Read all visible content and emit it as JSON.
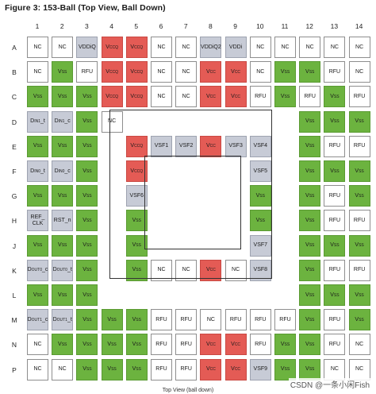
{
  "title": "Figure 3: 153-Ball (Top View, Ball Down)",
  "footer": "Top View (ball down)",
  "watermark": "CSDN @一条小闲Fish",
  "colors": {
    "green": "#6cb33f",
    "red": "#e45b55",
    "gray": "#c7cbd6",
    "white": "#ffffff"
  },
  "columns": [
    "1",
    "2",
    "3",
    "4",
    "5",
    "6",
    "7",
    "8",
    "9",
    "10",
    "11",
    "12",
    "13",
    "14"
  ],
  "rows": [
    {
      "label": "A",
      "cells": [
        [
          "NC",
          "w"
        ],
        [
          "NC",
          "w"
        ],
        [
          "VDDiQ",
          "g"
        ],
        [
          "VCCQ",
          "r"
        ],
        [
          "VCCQ",
          "r"
        ],
        [
          "NC",
          "w"
        ],
        [
          "NC",
          "w"
        ],
        [
          "VDDiQ2",
          "g"
        ],
        [
          "VDDi",
          "g"
        ],
        [
          "NC",
          "w"
        ],
        [
          "NC",
          "w"
        ],
        [
          "NC",
          "w"
        ],
        [
          "NC",
          "w"
        ],
        [
          "NC",
          "w"
        ]
      ]
    },
    {
      "label": "B",
      "cells": [
        [
          "NC",
          "w"
        ],
        [
          "VSS",
          "G"
        ],
        [
          "RFU",
          "w"
        ],
        [
          "VCCQ",
          "r"
        ],
        [
          "VCCQ",
          "r"
        ],
        [
          "NC",
          "w"
        ],
        [
          "NC",
          "w"
        ],
        [
          "VCC",
          "r"
        ],
        [
          "VCC",
          "r"
        ],
        [
          "NC",
          "w"
        ],
        [
          "VSS",
          "G"
        ],
        [
          "VSS",
          "G"
        ],
        [
          "RFU",
          "w"
        ],
        [
          "NC",
          "w"
        ]
      ]
    },
    {
      "label": "C",
      "cells": [
        [
          "VSS",
          "G"
        ],
        [
          "VSS",
          "G"
        ],
        [
          "VSS",
          "G"
        ],
        [
          "VCCQ",
          "r"
        ],
        [
          "VCCQ",
          "r"
        ],
        [
          "NC",
          "w"
        ],
        [
          "NC",
          "w"
        ],
        [
          "VCC",
          "r"
        ],
        [
          "VCC",
          "r"
        ],
        [
          "RFU",
          "w"
        ],
        [
          "VSS",
          "G"
        ],
        [
          "RFU",
          "w"
        ],
        [
          "VSS",
          "G"
        ],
        [
          "RFU",
          "w"
        ]
      ]
    },
    {
      "label": "D",
      "cells": [
        [
          "DIN1_t",
          "g"
        ],
        [
          "DIN1_c",
          "g"
        ],
        [
          "VSS",
          "G"
        ],
        [
          "NC",
          "w"
        ],
        [
          "",
          "e"
        ],
        [
          "",
          "e"
        ],
        [
          "",
          "e"
        ],
        [
          "",
          "e"
        ],
        [
          "",
          "e"
        ],
        [
          "",
          "e"
        ],
        [
          "",
          "e"
        ],
        [
          "VSS",
          "G"
        ],
        [
          "VSS",
          "G"
        ],
        [
          "VSS",
          "G"
        ]
      ]
    },
    {
      "label": "E",
      "cells": [
        [
          "VSS",
          "G"
        ],
        [
          "VSS",
          "G"
        ],
        [
          "VSS",
          "G"
        ],
        [
          "",
          "e"
        ],
        [
          "VCCQ",
          "r"
        ],
        [
          "VSF1",
          "g"
        ],
        [
          "VSF2",
          "g"
        ],
        [
          "VCC",
          "r"
        ],
        [
          "VSF3",
          "g"
        ],
        [
          "VSF4",
          "g"
        ],
        [
          "",
          "e"
        ],
        [
          "VSS",
          "G"
        ],
        [
          "RFU",
          "w"
        ],
        [
          "RFU",
          "w"
        ]
      ]
    },
    {
      "label": "F",
      "cells": [
        [
          "DIN0_t",
          "g"
        ],
        [
          "DIN0_c",
          "g"
        ],
        [
          "VSS",
          "G"
        ],
        [
          "",
          "e"
        ],
        [
          "VCCQ",
          "r"
        ],
        [
          "",
          "e"
        ],
        [
          "",
          "e"
        ],
        [
          "",
          "e"
        ],
        [
          "",
          "e"
        ],
        [
          "VSF5",
          "g"
        ],
        [
          "",
          "e"
        ],
        [
          "VSS",
          "G"
        ],
        [
          "VSS",
          "G"
        ],
        [
          "VSS",
          "G"
        ]
      ]
    },
    {
      "label": "G",
      "cells": [
        [
          "VSS",
          "G"
        ],
        [
          "VSS",
          "G"
        ],
        [
          "VSS",
          "G"
        ],
        [
          "",
          "e"
        ],
        [
          "VSF6",
          "g"
        ],
        [
          "",
          "e"
        ],
        [
          "",
          "e"
        ],
        [
          "",
          "e"
        ],
        [
          "",
          "e"
        ],
        [
          "VSS",
          "G"
        ],
        [
          "",
          "e"
        ],
        [
          "VSS",
          "G"
        ],
        [
          "RFU",
          "w"
        ],
        [
          "VSS",
          "G"
        ]
      ]
    },
    {
      "label": "H",
      "cells": [
        [
          "REF_CLK",
          "g"
        ],
        [
          "RST_n",
          "g"
        ],
        [
          "VSS",
          "G"
        ],
        [
          "",
          "e"
        ],
        [
          "VSS",
          "G"
        ],
        [
          "",
          "e"
        ],
        [
          "",
          "e"
        ],
        [
          "",
          "e"
        ],
        [
          "",
          "e"
        ],
        [
          "VSS",
          "G"
        ],
        [
          "",
          "e"
        ],
        [
          "VSS",
          "G"
        ],
        [
          "RFU",
          "w"
        ],
        [
          "RFU",
          "w"
        ]
      ]
    },
    {
      "label": "J",
      "cells": [
        [
          "VSS",
          "G"
        ],
        [
          "VSS",
          "G"
        ],
        [
          "VSS",
          "G"
        ],
        [
          "",
          "e"
        ],
        [
          "VSS",
          "G"
        ],
        [
          "",
          "e"
        ],
        [
          "",
          "e"
        ],
        [
          "",
          "e"
        ],
        [
          "",
          "e"
        ],
        [
          "VSF7",
          "g"
        ],
        [
          "",
          "e"
        ],
        [
          "VSS",
          "G"
        ],
        [
          "VSS",
          "G"
        ],
        [
          "VSS",
          "G"
        ]
      ]
    },
    {
      "label": "K",
      "cells": [
        [
          "DOUT0_c",
          "g"
        ],
        [
          "DOUT0_t",
          "g"
        ],
        [
          "VSS",
          "G"
        ],
        [
          "",
          "e"
        ],
        [
          "VSS",
          "G"
        ],
        [
          "NC",
          "w"
        ],
        [
          "NC",
          "w"
        ],
        [
          "VCC",
          "r"
        ],
        [
          "NC",
          "w"
        ],
        [
          "VSF8",
          "g"
        ],
        [
          "",
          "e"
        ],
        [
          "VSS",
          "G"
        ],
        [
          "RFU",
          "w"
        ],
        [
          "RFU",
          "w"
        ]
      ]
    },
    {
      "label": "L",
      "cells": [
        [
          "VSS",
          "G"
        ],
        [
          "VSS",
          "G"
        ],
        [
          "VSS",
          "G"
        ],
        [
          "",
          "e"
        ],
        [
          "",
          "e"
        ],
        [
          "",
          "e"
        ],
        [
          "",
          "e"
        ],
        [
          "",
          "e"
        ],
        [
          "",
          "e"
        ],
        [
          "",
          "e"
        ],
        [
          "",
          "e"
        ],
        [
          "VSS",
          "G"
        ],
        [
          "VSS",
          "G"
        ],
        [
          "VSS",
          "G"
        ]
      ]
    },
    {
      "label": "M",
      "cells": [
        [
          "DOUT1_c",
          "g"
        ],
        [
          "DOUT1_t",
          "g"
        ],
        [
          "VSS",
          "G"
        ],
        [
          "VSS",
          "G"
        ],
        [
          "VSS",
          "G"
        ],
        [
          "RFU",
          "w"
        ],
        [
          "RFU",
          "w"
        ],
        [
          "NC",
          "w"
        ],
        [
          "RFU",
          "w"
        ],
        [
          "RFU",
          "w"
        ],
        [
          "RFU",
          "w"
        ],
        [
          "VSS",
          "G"
        ],
        [
          "RFU",
          "w"
        ],
        [
          "VSS",
          "G"
        ]
      ]
    },
    {
      "label": "N",
      "cells": [
        [
          "NC",
          "w"
        ],
        [
          "VSS",
          "G"
        ],
        [
          "VSS",
          "G"
        ],
        [
          "VSS",
          "G"
        ],
        [
          "VSS",
          "G"
        ],
        [
          "RFU",
          "w"
        ],
        [
          "RFU",
          "w"
        ],
        [
          "VCC",
          "r"
        ],
        [
          "VCC",
          "r"
        ],
        [
          "RFU",
          "w"
        ],
        [
          "VSS",
          "G"
        ],
        [
          "VSS",
          "G"
        ],
        [
          "RFU",
          "w"
        ],
        [
          "NC",
          "w"
        ]
      ]
    },
    {
      "label": "P",
      "cells": [
        [
          "NC",
          "w"
        ],
        [
          "NC",
          "w"
        ],
        [
          "VSS",
          "G"
        ],
        [
          "VSS",
          "G"
        ],
        [
          "VSS",
          "G"
        ],
        [
          "RFU",
          "w"
        ],
        [
          "RFU",
          "w"
        ],
        [
          "VCC",
          "r"
        ],
        [
          "VCC",
          "r"
        ],
        [
          "VSF9",
          "g"
        ],
        [
          "VSS",
          "G"
        ],
        [
          "VSS",
          "G"
        ],
        [
          "NC",
          "w"
        ],
        [
          "NC",
          "w"
        ]
      ]
    }
  ]
}
